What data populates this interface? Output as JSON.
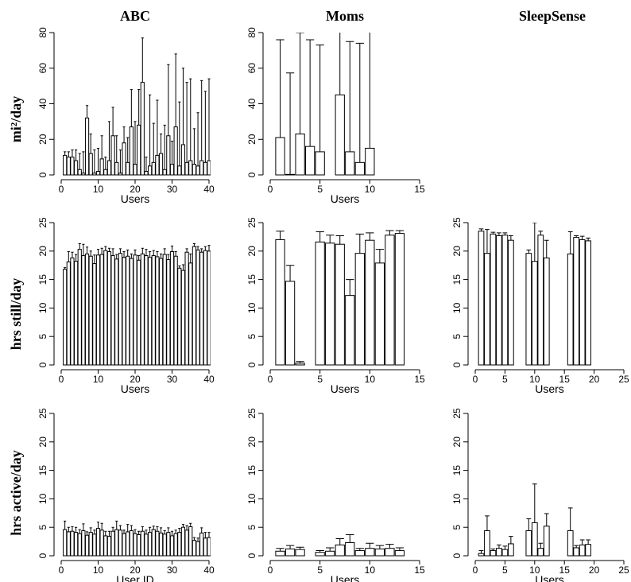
{
  "column_titles": [
    "ABC",
    "Moms",
    "SleepSense"
  ],
  "row_labels": [
    "mi²/day",
    "hrs still/day",
    "hrs active/day"
  ],
  "chart_data": [
    {
      "type": "bar",
      "xlabel": "Users",
      "color": "#ffffff",
      "x": [
        1,
        2,
        3,
        4,
        5,
        6,
        7,
        8,
        9,
        10,
        11,
        12,
        13,
        14,
        15,
        16,
        17,
        18,
        19,
        20,
        21,
        22,
        23,
        24,
        25,
        26,
        27,
        28,
        29,
        30,
        31,
        32,
        33,
        34,
        35,
        36,
        37,
        38,
        39,
        40
      ],
      "values": [
        11,
        10,
        10,
        8,
        3,
        1,
        32,
        12,
        1,
        2,
        9,
        3,
        8,
        22,
        7,
        1,
        18,
        7,
        27,
        6,
        28,
        52,
        2,
        5,
        7,
        11,
        12,
        3,
        22,
        6,
        27,
        5,
        17,
        7,
        8,
        6,
        5,
        8,
        7,
        8
      ],
      "errors": [
        2,
        3,
        4,
        6,
        9,
        12,
        7,
        11,
        13,
        13,
        13,
        7,
        22,
        16,
        15,
        13,
        9,
        14,
        21,
        24,
        20,
        25,
        8,
        40,
        22,
        31,
        11,
        25,
        40,
        13,
        41,
        36,
        43,
        45,
        46,
        20,
        30,
        45,
        40,
        46
      ],
      "xlim": [
        0,
        40
      ],
      "xticks": [
        0,
        10,
        20,
        30,
        40
      ],
      "ylim": [
        0,
        80
      ],
      "yticks": [
        0,
        20,
        40,
        60,
        80
      ]
    },
    {
      "type": "bar",
      "xlabel": "Users",
      "color": "#ffffff",
      "x": [
        1,
        2,
        3,
        4,
        5,
        7,
        8,
        9,
        10
      ],
      "values": [
        21,
        0.3,
        23,
        16,
        13,
        45,
        13,
        7,
        15
      ],
      "errors": [
        55,
        57,
        57,
        60,
        60,
        50,
        62,
        67,
        70
      ],
      "xlim": [
        0,
        15
      ],
      "xticks": [
        0,
        5,
        10,
        15
      ],
      "ylim": [
        0,
        80
      ],
      "yticks": [
        0,
        20,
        40,
        60,
        80
      ]
    },
    {
      "type": "bar",
      "xlabel": "Users",
      "color": "#ffffff",
      "x": [
        1,
        2,
        3,
        4,
        5,
        6,
        7,
        8,
        9,
        10,
        11,
        12,
        13,
        14,
        15,
        16,
        17,
        18,
        19,
        20,
        21,
        22,
        23,
        24,
        25,
        26,
        27,
        28,
        29,
        30,
        31,
        32,
        33,
        34,
        35,
        36,
        37,
        38,
        39,
        40
      ],
      "values": [
        16.8,
        18.1,
        18.8,
        18.2,
        20.3,
        19.2,
        19.5,
        19.1,
        17.8,
        19.3,
        19.4,
        20.1,
        19.9,
        19.2,
        18.6,
        19.6,
        18.9,
        19.1,
        18.7,
        19.3,
        18.4,
        19.5,
        19.2,
        18.9,
        19.2,
        19.0,
        18.7,
        19.4,
        18.5,
        19.9,
        19.1,
        17.0,
        16.6,
        19.8,
        17.9,
        20.8,
        20.2,
        19.8,
        20.1,
        20.0
      ],
      "errors": [
        0.3,
        1.8,
        1.0,
        1.2,
        1.0,
        2.0,
        1.2,
        0.9,
        1.5,
        1.0,
        1.1,
        0.7,
        0.6,
        1.2,
        0.8,
        0.8,
        1.0,
        1.1,
        0.8,
        0.9,
        0.8,
        1.0,
        1.1,
        1.0,
        0.9,
        0.9,
        0.8,
        1.0,
        0.9,
        1.0,
        0.8,
        0.4,
        1.0,
        0.6,
        1.6,
        0.5,
        0.6,
        0.6,
        0.7,
        1.0
      ],
      "xlim": [
        0,
        40
      ],
      "xticks": [
        0,
        10,
        20,
        30,
        40
      ],
      "ylim": [
        0,
        25
      ],
      "yticks": [
        0,
        5,
        10,
        15,
        20,
        25
      ]
    },
    {
      "type": "bar",
      "xlabel": "Users",
      "color": "#ffffff",
      "x": [
        1,
        2,
        3,
        5,
        6,
        7,
        8,
        9,
        10,
        11,
        12,
        13
      ],
      "values": [
        22,
        14.7,
        0.3,
        21.6,
        21.4,
        21.2,
        12.2,
        19.6,
        21.9,
        17.9,
        22.8,
        23.1
      ],
      "errors": [
        1.5,
        2.8,
        0.3,
        1.8,
        1.4,
        1.5,
        2.8,
        3.4,
        1.3,
        2.4,
        0.8,
        0.5
      ],
      "xlim": [
        0,
        15
      ],
      "xticks": [
        0,
        5,
        10,
        15
      ],
      "ylim": [
        0,
        25
      ],
      "yticks": [
        0,
        5,
        10,
        15,
        20,
        25
      ]
    },
    {
      "type": "bar",
      "xlabel": "Users",
      "color": "#ffffff",
      "x": [
        1,
        2,
        3,
        4,
        5,
        6,
        9,
        10,
        11,
        12,
        16,
        17,
        18,
        19
      ],
      "values": [
        23.5,
        19.6,
        23,
        22.7,
        22.8,
        21.9,
        19.6,
        18.2,
        22.8,
        18.8,
        19.5,
        22.4,
        22,
        21.8
      ],
      "errors": [
        0.4,
        4.2,
        0.3,
        0.5,
        0.4,
        0.8,
        0.6,
        6.8,
        0.7,
        3.1,
        3.9,
        0.3,
        0.6,
        0.5
      ],
      "xlim": [
        0,
        25
      ],
      "xticks": [
        0,
        5,
        10,
        15,
        20,
        25
      ],
      "ylim": [
        0,
        25
      ],
      "yticks": [
        0,
        5,
        10,
        15,
        20,
        25
      ]
    },
    {
      "type": "bar",
      "xlabel": "User ID",
      "color": "#ffffff",
      "x": [
        1,
        2,
        3,
        4,
        5,
        6,
        7,
        8,
        9,
        10,
        11,
        12,
        13,
        14,
        15,
        16,
        17,
        18,
        19,
        20,
        21,
        22,
        23,
        24,
        25,
        26,
        27,
        28,
        29,
        30,
        31,
        32,
        33,
        34,
        35,
        36,
        37,
        38,
        39,
        40
      ],
      "values": [
        4.6,
        4.2,
        4.3,
        4.1,
        3.9,
        4.4,
        3.6,
        4.1,
        3.8,
        4.8,
        4.5,
        3.5,
        3.4,
        4.3,
        4.6,
        4.5,
        3.9,
        4.2,
        4.4,
        3.9,
        3.7,
        4.3,
        3.8,
        4.1,
        4.6,
        4.3,
        4.0,
        3.8,
        4.1,
        3.5,
        3.9,
        4.1,
        5.0,
        4.5,
        5.1,
        2.7,
        2.5,
        4.0,
        3.1,
        3.2
      ],
      "errors": [
        1.5,
        0.8,
        0.8,
        0.9,
        0.7,
        1.2,
        0.6,
        0.8,
        0.7,
        1.1,
        1.2,
        0.8,
        0.9,
        0.7,
        1.5,
        0.8,
        0.6,
        1.3,
        0.9,
        0.7,
        0.6,
        0.8,
        0.7,
        0.9,
        0.6,
        0.8,
        0.9,
        0.6,
        0.8,
        0.8,
        0.6,
        0.7,
        0.5,
        0.8,
        0.6,
        0.5,
        0.6,
        0.9,
        1.0,
        0.9
      ],
      "xlim": [
        0,
        40
      ],
      "xticks": [
        0,
        10,
        20,
        30,
        40
      ],
      "ylim": [
        0,
        25
      ],
      "yticks": [
        0,
        5,
        10,
        15,
        20,
        25
      ]
    },
    {
      "type": "bar",
      "xlabel": "Users",
      "color": "#ffffff",
      "x": [
        1,
        2,
        3,
        5,
        6,
        7,
        8,
        9,
        10,
        11,
        12,
        13
      ],
      "values": [
        0.8,
        1.2,
        1.1,
        0.6,
        0.8,
        1.9,
        2.3,
        0.9,
        1.3,
        1.2,
        1.3,
        0.9
      ],
      "errors": [
        0.5,
        0.6,
        0.4,
        0.3,
        0.6,
        1.1,
        1.4,
        0.4,
        0.9,
        0.6,
        0.7,
        0.5
      ],
      "xlim": [
        0,
        15
      ],
      "xticks": [
        0,
        5,
        10,
        15
      ],
      "ylim": [
        0,
        25
      ],
      "yticks": [
        0,
        5,
        10,
        15,
        20,
        25
      ]
    },
    {
      "type": "bar",
      "xlabel": "Users",
      "color": "#ffffff",
      "x": [
        1,
        2,
        3,
        4,
        5,
        6,
        9,
        10,
        11,
        12,
        16,
        17,
        18,
        19
      ],
      "values": [
        0.4,
        4.4,
        0.9,
        1.3,
        1.1,
        2.1,
        4.4,
        5.8,
        1.3,
        5.2,
        4.4,
        1.4,
        1.9,
        2.0
      ],
      "errors": [
        0.5,
        2.6,
        0.3,
        0.6,
        0.6,
        1.3,
        2.1,
        6.8,
        0.9,
        2.2,
        4.0,
        0.4,
        0.9,
        0.8
      ],
      "xlim": [
        0,
        25
      ],
      "xticks": [
        0,
        5,
        10,
        15,
        20,
        25
      ],
      "ylim": [
        0,
        25
      ],
      "yticks": [
        0,
        5,
        10,
        15,
        20,
        25
      ]
    }
  ]
}
